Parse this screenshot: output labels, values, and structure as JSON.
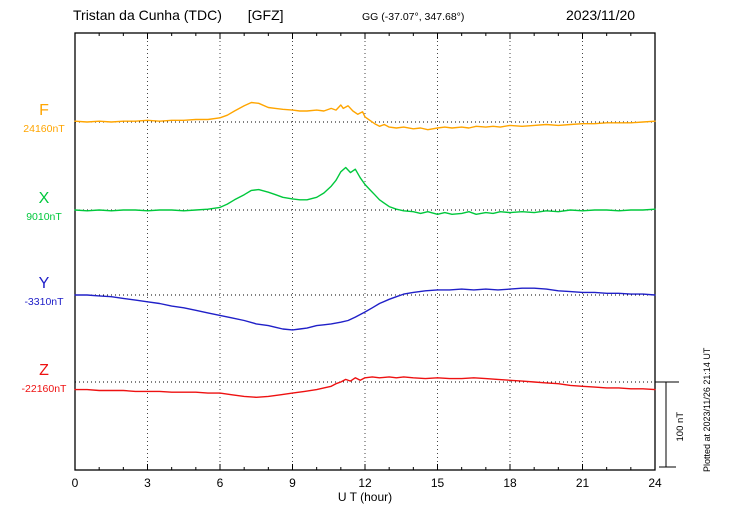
{
  "chart_data": {
    "type": "line",
    "title": "Tristan da Cunha (TDC)",
    "institute": "[GFZ]",
    "subtitle": "GG (-37.07°, 347.68°)",
    "date": "2023/11/20",
    "xlabel": "U T (hour)",
    "xlim": [
      0,
      24
    ],
    "xticks": [
      0,
      3,
      6,
      9,
      12,
      15,
      18,
      21,
      24
    ],
    "grid": {
      "vertical": "dotted every 3 h",
      "horizontal": "dotted baseline per component"
    },
    "unit": "nT",
    "scale_bar_label": "100 nT",
    "scale_bar_nT": 100,
    "plotted_at": "Plotted at 2023/11/26 21:14 UT",
    "series": [
      {
        "name": "F",
        "base_label": "24160nT",
        "base_value_nT": 24160,
        "color": "#FFA500",
        "offsets_nT": [
          [
            0,
            1
          ],
          [
            0.5,
            0
          ],
          [
            1,
            1
          ],
          [
            1.5,
            0
          ],
          [
            2,
            1
          ],
          [
            2.5,
            1
          ],
          [
            3,
            2
          ],
          [
            3.5,
            1
          ],
          [
            4,
            2
          ],
          [
            4.5,
            2
          ],
          [
            5,
            3
          ],
          [
            5.5,
            3
          ],
          [
            6,
            5
          ],
          [
            6.3,
            8
          ],
          [
            6.6,
            13
          ],
          [
            7,
            19
          ],
          [
            7.3,
            23
          ],
          [
            7.6,
            22
          ],
          [
            8,
            17
          ],
          [
            8.3,
            16
          ],
          [
            8.6,
            15
          ],
          [
            9,
            14
          ],
          [
            9.3,
            13
          ],
          [
            9.6,
            13
          ],
          [
            10,
            14
          ],
          [
            10.3,
            13
          ],
          [
            10.6,
            16
          ],
          [
            10.8,
            14
          ],
          [
            11,
            20
          ],
          [
            11.1,
            16
          ],
          [
            11.3,
            19
          ],
          [
            11.5,
            13
          ],
          [
            11.7,
            9
          ],
          [
            11.9,
            12
          ],
          [
            12,
            6
          ],
          [
            12.2,
            2
          ],
          [
            12.4,
            -2
          ],
          [
            12.6,
            -5
          ],
          [
            12.8,
            -3
          ],
          [
            13,
            -6
          ],
          [
            13.3,
            -7
          ],
          [
            13.6,
            -6
          ],
          [
            14,
            -8
          ],
          [
            14.3,
            -7
          ],
          [
            14.6,
            -9
          ],
          [
            15,
            -7
          ],
          [
            15.3,
            -6
          ],
          [
            15.6,
            -7
          ],
          [
            16,
            -6
          ],
          [
            16.3,
            -7
          ],
          [
            16.6,
            -5
          ],
          [
            17,
            -6
          ],
          [
            17.3,
            -5
          ],
          [
            17.6,
            -6
          ],
          [
            18,
            -4
          ],
          [
            18.5,
            -5
          ],
          [
            19,
            -4
          ],
          [
            19.5,
            -3
          ],
          [
            20,
            -4
          ],
          [
            20.5,
            -3
          ],
          [
            21,
            -2
          ],
          [
            21.5,
            -2
          ],
          [
            22,
            -1
          ],
          [
            22.5,
            -1
          ],
          [
            23,
            -1
          ],
          [
            23.5,
            0
          ],
          [
            24,
            1
          ]
        ]
      },
      {
        "name": "X",
        "base_label": "9010nT",
        "base_value_nT": 9010,
        "color": "#00C83C",
        "offsets_nT": [
          [
            0,
            0
          ],
          [
            0.5,
            -1
          ],
          [
            1,
            0
          ],
          [
            1.5,
            -1
          ],
          [
            2,
            0
          ],
          [
            2.5,
            0
          ],
          [
            3,
            -1
          ],
          [
            3.5,
            0
          ],
          [
            4,
            0
          ],
          [
            4.5,
            -1
          ],
          [
            5,
            0
          ],
          [
            5.5,
            1
          ],
          [
            6,
            3
          ],
          [
            6.3,
            7
          ],
          [
            6.6,
            12
          ],
          [
            7,
            18
          ],
          [
            7.3,
            23
          ],
          [
            7.6,
            24
          ],
          [
            8,
            21
          ],
          [
            8.3,
            18
          ],
          [
            8.6,
            15
          ],
          [
            9,
            13
          ],
          [
            9.3,
            12
          ],
          [
            9.6,
            12
          ],
          [
            10,
            15
          ],
          [
            10.3,
            20
          ],
          [
            10.6,
            28
          ],
          [
            10.8,
            35
          ],
          [
            11,
            45
          ],
          [
            11.2,
            50
          ],
          [
            11.4,
            44
          ],
          [
            11.6,
            48
          ],
          [
            11.8,
            38
          ],
          [
            12,
            30
          ],
          [
            12.2,
            24
          ],
          [
            12.4,
            18
          ],
          [
            12.6,
            12
          ],
          [
            12.8,
            8
          ],
          [
            13,
            4
          ],
          [
            13.3,
            1
          ],
          [
            13.6,
            -1
          ],
          [
            14,
            -2
          ],
          [
            14.3,
            -4
          ],
          [
            14.6,
            -2
          ],
          [
            15,
            -5
          ],
          [
            15.3,
            -3
          ],
          [
            15.6,
            -5
          ],
          [
            16,
            -4
          ],
          [
            16.3,
            -2
          ],
          [
            16.6,
            -5
          ],
          [
            17,
            -3
          ],
          [
            17.3,
            -4
          ],
          [
            17.6,
            -2
          ],
          [
            18,
            -3
          ],
          [
            18.5,
            -2
          ],
          [
            19,
            -3
          ],
          [
            19.5,
            -1
          ],
          [
            20,
            -2
          ],
          [
            20.5,
            0
          ],
          [
            21,
            -1
          ],
          [
            21.5,
            0
          ],
          [
            22,
            0
          ],
          [
            22.5,
            -1
          ],
          [
            23,
            0
          ],
          [
            23.5,
            0
          ],
          [
            24,
            1
          ]
        ]
      },
      {
        "name": "Y",
        "base_label": "-3310nT",
        "base_value_nT": -3310,
        "color": "#2020C8",
        "offsets_nT": [
          [
            0,
            0
          ],
          [
            0.5,
            0
          ],
          [
            1,
            -1
          ],
          [
            1.5,
            -2
          ],
          [
            2,
            -4
          ],
          [
            2.5,
            -6
          ],
          [
            3,
            -8
          ],
          [
            3.5,
            -10
          ],
          [
            4,
            -13
          ],
          [
            4.5,
            -15
          ],
          [
            5,
            -18
          ],
          [
            5.5,
            -21
          ],
          [
            6,
            -24
          ],
          [
            6.5,
            -27
          ],
          [
            7,
            -30
          ],
          [
            7.5,
            -34
          ],
          [
            8,
            -36
          ],
          [
            8.3,
            -38
          ],
          [
            8.6,
            -40
          ],
          [
            9,
            -41
          ],
          [
            9.3,
            -40
          ],
          [
            9.6,
            -39
          ],
          [
            10,
            -36
          ],
          [
            10.3,
            -35
          ],
          [
            10.6,
            -34
          ],
          [
            11,
            -32
          ],
          [
            11.3,
            -30
          ],
          [
            11.6,
            -26
          ],
          [
            12,
            -20
          ],
          [
            12.3,
            -15
          ],
          [
            12.6,
            -10
          ],
          [
            13,
            -5
          ],
          [
            13.3,
            -2
          ],
          [
            13.6,
            1
          ],
          [
            14,
            3
          ],
          [
            14.5,
            5
          ],
          [
            15,
            6
          ],
          [
            15.5,
            6
          ],
          [
            16,
            7
          ],
          [
            16.5,
            6
          ],
          [
            17,
            7
          ],
          [
            17.5,
            6
          ],
          [
            18,
            7
          ],
          [
            18.5,
            8
          ],
          [
            19,
            8
          ],
          [
            19.5,
            7
          ],
          [
            20,
            5
          ],
          [
            20.5,
            4
          ],
          [
            21,
            3
          ],
          [
            21.5,
            3
          ],
          [
            22,
            2
          ],
          [
            22.5,
            2
          ],
          [
            23,
            1
          ],
          [
            23.5,
            1
          ],
          [
            24,
            0
          ]
        ]
      },
      {
        "name": "Z",
        "base_label": "-22160nT",
        "base_value_nT": -22160,
        "color": "#EE1111",
        "offsets_nT": [
          [
            0,
            -9
          ],
          [
            0.5,
            -9
          ],
          [
            1,
            -10
          ],
          [
            1.5,
            -10
          ],
          [
            2,
            -10
          ],
          [
            2.5,
            -11
          ],
          [
            3,
            -11
          ],
          [
            3.5,
            -11
          ],
          [
            4,
            -12
          ],
          [
            4.5,
            -12
          ],
          [
            5,
            -12
          ],
          [
            5.5,
            -13
          ],
          [
            6,
            -13
          ],
          [
            6.5,
            -15
          ],
          [
            7,
            -17
          ],
          [
            7.5,
            -18
          ],
          [
            8,
            -17
          ],
          [
            8.5,
            -15
          ],
          [
            9,
            -13
          ],
          [
            9.5,
            -11
          ],
          [
            10,
            -9
          ],
          [
            10.3,
            -7
          ],
          [
            10.6,
            -5
          ],
          [
            10.8,
            -2
          ],
          [
            11,
            0
          ],
          [
            11.2,
            3
          ],
          [
            11.4,
            1
          ],
          [
            11.6,
            5
          ],
          [
            11.8,
            2
          ],
          [
            12,
            5
          ],
          [
            12.3,
            6
          ],
          [
            12.6,
            5
          ],
          [
            13,
            6
          ],
          [
            13.3,
            5
          ],
          [
            13.6,
            6
          ],
          [
            14,
            5
          ],
          [
            14.5,
            4
          ],
          [
            15,
            5
          ],
          [
            15.5,
            4
          ],
          [
            16,
            4
          ],
          [
            16.5,
            5
          ],
          [
            17,
            4
          ],
          [
            17.5,
            3
          ],
          [
            18,
            2
          ],
          [
            18.5,
            1
          ],
          [
            19,
            0
          ],
          [
            19.5,
            -1
          ],
          [
            20,
            -2
          ],
          [
            20.5,
            -4
          ],
          [
            21,
            -5
          ],
          [
            21.5,
            -6
          ],
          [
            22,
            -7
          ],
          [
            22.5,
            -7
          ],
          [
            23,
            -8
          ],
          [
            23.5,
            -8
          ],
          [
            24,
            -9
          ]
        ]
      }
    ]
  }
}
